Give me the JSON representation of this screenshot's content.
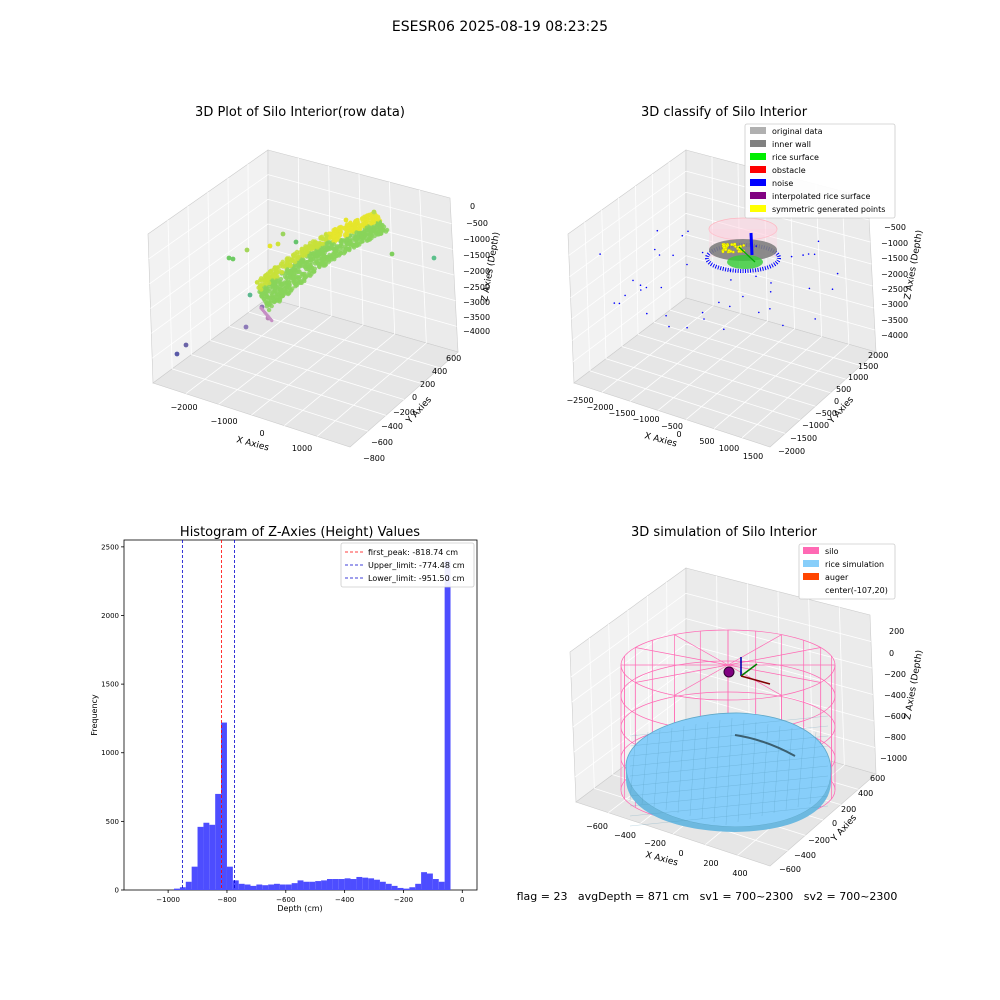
{
  "suptitle": "ESESR06 2025-08-19 08:23:25",
  "status_line": "flag = 23   avgDepth = 871 cm   sv1 = 700~2300   sv2 = 700~2300",
  "colors": {
    "hist_bar": "#4d4dff",
    "first_peak": "#ff0000",
    "limits": "#0000cc",
    "silo": "#ff69b4",
    "rice": "#87cefa",
    "auger": "#ff4500"
  },
  "chart_data": [
    {
      "type": "scatter3d",
      "title": "3D Plot of Silo Interior(row data)",
      "xlabel": "X Axies",
      "ylabel": "Y Axies",
      "zlabel": "Z Axies (Depth)",
      "x_ticks": [
        "−2000",
        "−1000",
        "0",
        "1000"
      ],
      "y_ticks": [
        "−800",
        "−600",
        "−400",
        "−200",
        "0",
        "200",
        "400",
        "600"
      ],
      "z_ticks": [
        "0",
        "−500",
        "−1000",
        "−1500",
        "−2000",
        "−2500",
        "−3000",
        "−3500",
        "−4000"
      ]
    },
    {
      "type": "scatter3d",
      "title": "3D classify of Silo Interior",
      "xlabel": "X Axies",
      "ylabel": "Y Axies",
      "zlabel": "Z Axies (Depth)",
      "x_ticks": [
        "−2500",
        "−2000",
        "−1500",
        "−1000",
        "−500",
        "0",
        "500",
        "1000",
        "1500"
      ],
      "y_ticks": [
        "−2000",
        "−1500",
        "−1000",
        "−500",
        "0",
        "500",
        "1000",
        "1500",
        "2000"
      ],
      "z_ticks": [
        "−500",
        "−1000",
        "−1500",
        "−2000",
        "−2500",
        "−3000",
        "−3500",
        "−4000"
      ],
      "legend": [
        {
          "label": "original data",
          "color": "#b0b0b0"
        },
        {
          "label": "inner wall",
          "color": "#808080"
        },
        {
          "label": "rice surface",
          "color": "#00ee00"
        },
        {
          "label": "obstacle",
          "color": "#ff0000"
        },
        {
          "label": "noise",
          "color": "#0000ff"
        },
        {
          "label": "interpolated rice surface",
          "color": "#800080"
        },
        {
          "label": "symmetric generated points",
          "color": "#ffff00"
        }
      ]
    },
    {
      "type": "bar",
      "title": "Histogram of Z-Axies (Height) Values",
      "xlabel": "Depth (cm)",
      "ylabel": "Frequency",
      "xlim": [
        -1150,
        50
      ],
      "ylim": [
        0,
        2550
      ],
      "x_ticks": [
        -1000,
        -800,
        -600,
        -400,
        -200,
        0
      ],
      "x_tick_labels": [
        "−1000",
        "−800",
        "−600",
        "−400",
        "−200",
        "0"
      ],
      "y_ticks": [
        0,
        500,
        1000,
        1500,
        2000,
        2500
      ],
      "bin_width": 20,
      "bins": [
        {
          "x": -980,
          "v": 10
        },
        {
          "x": -960,
          "v": 20
        },
        {
          "x": -940,
          "v": 60
        },
        {
          "x": -920,
          "v": 170
        },
        {
          "x": -900,
          "v": 460
        },
        {
          "x": -880,
          "v": 490
        },
        {
          "x": -860,
          "v": 475
        },
        {
          "x": -840,
          "v": 700
        },
        {
          "x": -820,
          "v": 1220
        },
        {
          "x": -800,
          "v": 170
        },
        {
          "x": -780,
          "v": 70
        },
        {
          "x": -760,
          "v": 45
        },
        {
          "x": -740,
          "v": 40
        },
        {
          "x": -720,
          "v": 30
        },
        {
          "x": -700,
          "v": 40
        },
        {
          "x": -680,
          "v": 35
        },
        {
          "x": -660,
          "v": 40
        },
        {
          "x": -640,
          "v": 45
        },
        {
          "x": -620,
          "v": 40
        },
        {
          "x": -600,
          "v": 40
        },
        {
          "x": -580,
          "v": 50
        },
        {
          "x": -560,
          "v": 70
        },
        {
          "x": -540,
          "v": 60
        },
        {
          "x": -520,
          "v": 60
        },
        {
          "x": -500,
          "v": 65
        },
        {
          "x": -480,
          "v": 70
        },
        {
          "x": -460,
          "v": 80
        },
        {
          "x": -440,
          "v": 80
        },
        {
          "x": -420,
          "v": 80
        },
        {
          "x": -400,
          "v": 85
        },
        {
          "x": -380,
          "v": 80
        },
        {
          "x": -360,
          "v": 95
        },
        {
          "x": -340,
          "v": 90
        },
        {
          "x": -320,
          "v": 85
        },
        {
          "x": -300,
          "v": 75
        },
        {
          "x": -280,
          "v": 60
        },
        {
          "x": -260,
          "v": 45
        },
        {
          "x": -240,
          "v": 30
        },
        {
          "x": -220,
          "v": 15
        },
        {
          "x": -200,
          "v": 10
        },
        {
          "x": -180,
          "v": 20
        },
        {
          "x": -160,
          "v": 45
        },
        {
          "x": -140,
          "v": 130
        },
        {
          "x": -120,
          "v": 120
        },
        {
          "x": -100,
          "v": 80
        },
        {
          "x": -80,
          "v": 60
        },
        {
          "x": -60,
          "v": 2400
        }
      ],
      "lines": [
        {
          "label": "first_peak: -818.74 cm",
          "x": -818.74,
          "color": "#ff0000"
        },
        {
          "label": "Upper_limit: -774.48 cm",
          "x": -774.48,
          "color": "#0000cc"
        },
        {
          "label": "Lower_limit: -951.50 cm",
          "x": -951.5,
          "color": "#0000cc"
        }
      ]
    },
    {
      "type": "surface3d",
      "title": "3D simulation of Silo Interior",
      "xlabel": "X Axies",
      "ylabel": "Y Axies",
      "zlabel": "Z Axies (Depth)",
      "x_ticks": [
        "−600",
        "−400",
        "−200",
        "0",
        "200",
        "400"
      ],
      "y_ticks": [
        "−600",
        "−400",
        "−200",
        "0",
        "200",
        "400",
        "600"
      ],
      "z_ticks": [
        "200",
        "0",
        "−200",
        "−400",
        "−600",
        "−800",
        "−1000"
      ],
      "legend": [
        {
          "label": "silo",
          "color": "#ff69b4"
        },
        {
          "label": "rice simulation",
          "color": "#87cefa"
        },
        {
          "label": "auger",
          "color": "#ff4500"
        },
        {
          "label": "center(-107,20)",
          "color": ""
        }
      ]
    }
  ]
}
